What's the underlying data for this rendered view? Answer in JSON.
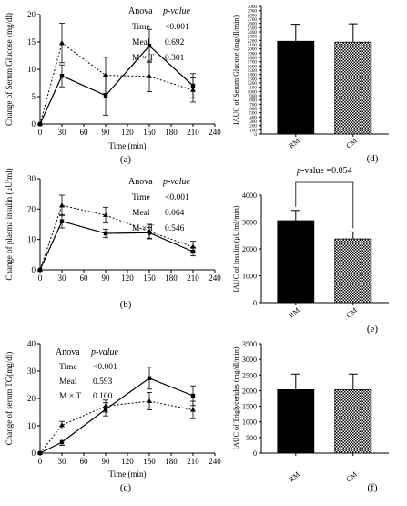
{
  "chart_data": [
    {
      "id": "a",
      "type": "line",
      "panel_label": "(a)",
      "ylabel": "Change of Serum Glucose  (mg/dl)",
      "xlabel": "Time (min)",
      "ylim": [
        0,
        20
      ],
      "y_ticks": [
        "0",
        "5",
        "10",
        "15",
        "20"
      ],
      "xlim": [
        0,
        240
      ],
      "x_ticks": [
        "0",
        "30",
        "60",
        "90",
        "120",
        "150",
        "180",
        "210",
        "240"
      ],
      "x": [
        0,
        30,
        90,
        150,
        210
      ],
      "series": [
        {
          "style": "solid",
          "values": [
            0,
            8.8,
            5.2,
            14.3,
            7.0
          ],
          "err": [
            0,
            2.0,
            3.6,
            3.0,
            2.2
          ]
        },
        {
          "style": "dashed",
          "values": [
            0,
            14.8,
            8.9,
            8.7,
            6.2
          ],
          "err": [
            0,
            3.6,
            3.3,
            2.8,
            2.2
          ]
        }
      ],
      "stats": {
        "header": [
          "Anova",
          "p-value"
        ],
        "rows": [
          [
            "Time",
            "<0.001"
          ],
          [
            "Meal",
            "0.692"
          ],
          [
            "M × T",
            "0.301"
          ]
        ]
      }
    },
    {
      "id": "b",
      "type": "line",
      "panel_label": "(b)",
      "ylabel": "Change of plasma insulin (μU/ml)",
      "xlabel": "",
      "ylim": [
        0,
        30
      ],
      "y_ticks": [
        "0",
        "10",
        "20",
        "30"
      ],
      "xlim": [
        0,
        240
      ],
      "x_ticks": [
        "0",
        "30",
        "60",
        "90",
        "120",
        "150",
        "180",
        "210",
        "240"
      ],
      "x": [
        0,
        30,
        90,
        150,
        210
      ],
      "series": [
        {
          "style": "solid",
          "values": [
            0,
            16.0,
            12.0,
            12.2,
            6.0
          ],
          "err": [
            0,
            2.2,
            1.4,
            1.8,
            1.4
          ]
        },
        {
          "style": "dashed",
          "values": [
            0,
            21.2,
            18.0,
            12.6,
            7.6
          ],
          "err": [
            0,
            3.4,
            2.6,
            2.4,
            1.8
          ]
        }
      ],
      "stats": {
        "header": [
          "Anova",
          "p-value"
        ],
        "rows": [
          [
            "Time",
            "<0.001"
          ],
          [
            "Meal",
            "0.064"
          ],
          [
            "M × T",
            "0.546"
          ]
        ]
      }
    },
    {
      "id": "c",
      "type": "line",
      "panel_label": "(c)",
      "ylabel": "Change of serum TG(mg/dl)",
      "xlabel": "Time (min)",
      "ylim": [
        0,
        40
      ],
      "y_ticks": [
        "0",
        "10",
        "20",
        "30",
        "40"
      ],
      "xlim": [
        0,
        240
      ],
      "x_ticks": [
        "0",
        "30",
        "60",
        "90",
        "120",
        "150",
        "180",
        "210",
        "240"
      ],
      "x": [
        0,
        30,
        90,
        150,
        210
      ],
      "series": [
        {
          "style": "solid",
          "values": [
            0,
            4.0,
            16.0,
            27.4,
            21.0
          ],
          "err": [
            0,
            1.2,
            2.4,
            4.0,
            3.6
          ]
        },
        {
          "style": "dashed",
          "values": [
            0,
            10.2,
            17.2,
            19.0,
            15.8
          ],
          "err": [
            0,
            1.4,
            2.2,
            3.2,
            3.2
          ]
        }
      ],
      "stats": {
        "header": [
          "Anova",
          "p-value"
        ],
        "rows": [
          [
            "Time",
            "<0.001"
          ],
          [
            "Meal",
            "0.593"
          ],
          [
            "M × T",
            "0.100"
          ]
        ]
      }
    },
    {
      "id": "d",
      "type": "bar",
      "panel_label": "(d)",
      "ylabel": "IAUC of Serum Glucose (mg/dl/min)",
      "ylim": [
        0,
        3000
      ],
      "y_ticks": [
        "0",
        "100",
        "200",
        "300",
        "400",
        "500",
        "600",
        "700",
        "800",
        "900",
        "1000",
        "1100",
        "1200",
        "1300",
        "1400",
        "1500",
        "1600",
        "1700",
        "1800",
        "1900",
        "2000",
        "2100",
        "2200",
        "2300",
        "2400",
        "2500",
        "2600",
        "2700",
        "2800",
        "2900",
        "3000"
      ],
      "categories": [
        "RM",
        "CM"
      ],
      "values": [
        2180,
        2160
      ],
      "err": [
        400,
        430
      ],
      "fills": [
        "solid",
        "checker"
      ]
    },
    {
      "id": "e",
      "type": "bar",
      "panel_label": "(e)",
      "ylabel": "IAUC of Insulin (μU/ml/min)",
      "ylim": [
        0,
        4000
      ],
      "y_ticks": [
        "0",
        "1000",
        "2000",
        "3000",
        "4000"
      ],
      "categories": [
        "RM",
        "CM"
      ],
      "values": [
        3050,
        2370
      ],
      "err": [
        380,
        260
      ],
      "fills": [
        "solid",
        "checker"
      ],
      "annotation": "p-value =0.054"
    },
    {
      "id": "f",
      "type": "bar",
      "panel_label": "(f)",
      "ylabel": "IAUC of Triglycerides (mg/dl/min)",
      "ylim": [
        0,
        3500
      ],
      "y_ticks": [
        "0",
        "500",
        "1000",
        "1500",
        "2000",
        "2500",
        "3000",
        "3500"
      ],
      "categories": [
        "RM",
        "CM"
      ],
      "values": [
        2030,
        2030
      ],
      "err": [
        500,
        500
      ],
      "fills": [
        "solid",
        "checker"
      ]
    }
  ]
}
